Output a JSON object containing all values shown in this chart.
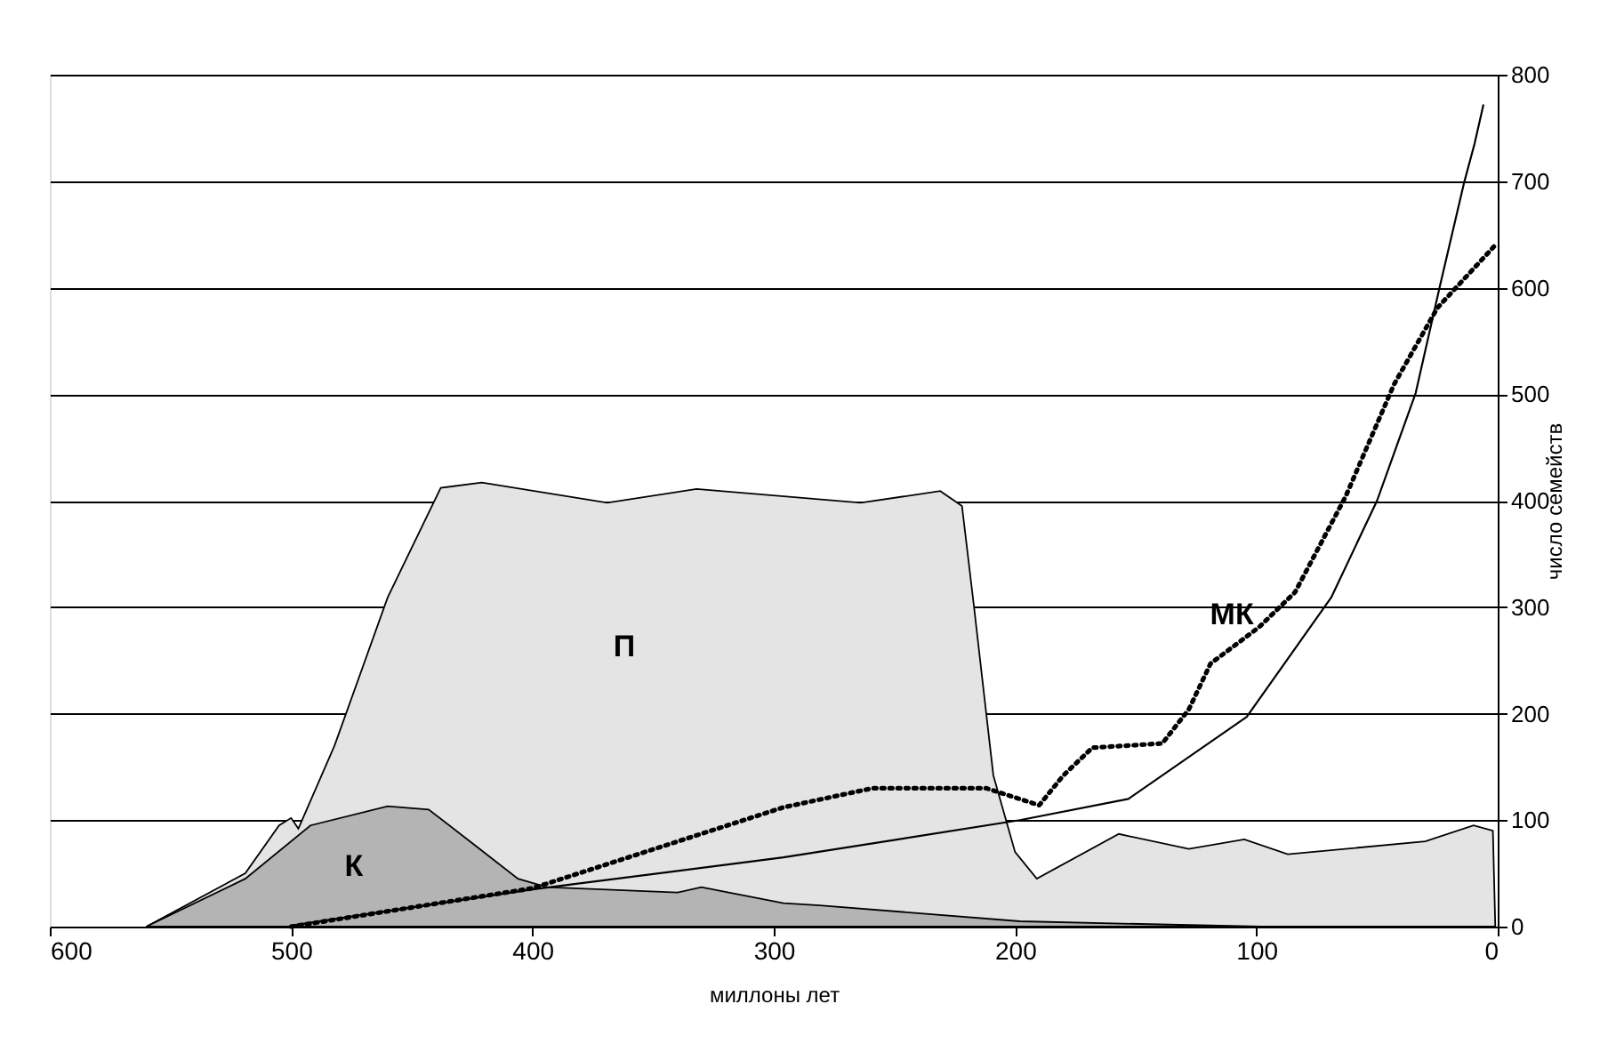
{
  "chart_data": {
    "type": "area",
    "xlabel": "миллоны лет",
    "ylabel": "число семейств",
    "xlim": [
      600,
      0
    ],
    "xticks": [
      600,
      500,
      400,
      300,
      200,
      100,
      0
    ],
    "ylim": [
      0,
      800
    ],
    "yticks": [
      0,
      100,
      200,
      300,
      400,
      500,
      600,
      700,
      800
    ],
    "grid": "y",
    "marker": "none",
    "series": [
      {
        "color": "#e4e4e4",
        "x": [
          560,
          519,
          505,
          500,
          497,
          482,
          460,
          438,
          421,
          369,
          332,
          264,
          231,
          222,
          217,
          209,
          200,
          191,
          157,
          128,
          105,
          87,
          30,
          10,
          2,
          1
        ],
        "values": [
          0,
          50,
          95,
          102,
          92,
          170,
          309,
          412,
          417,
          398,
          411,
          398,
          409,
          395,
          300,
          142,
          70,
          45,
          87,
          73,
          82,
          68,
          80,
          95,
          90,
          0
        ]
      },
      {
        "color": "#b4b4b4",
        "x": [
          560,
          519,
          492,
          460,
          443,
          423,
          406,
          394,
          340,
          330,
          296,
          281,
          198,
          98
        ],
        "values": [
          0,
          45,
          95,
          113,
          110,
          75,
          45,
          37,
          32,
          37,
          22,
          20,
          5,
          0
        ]
      },
      {
        "type": "line",
        "color": "#000000",
        "line_style": "solid",
        "x": [
          500,
          400,
          296,
          198,
          153,
          104,
          69,
          50,
          34,
          24,
          14,
          9.6,
          5.9
        ],
        "values": [
          1,
          35,
          65,
          100,
          120,
          197,
          309,
          400,
          501,
          601,
          698,
          735,
          772
        ]
      },
      {
        "type": "line",
        "color": "#000000",
        "line_style": "dotted",
        "x": [
          500,
          400,
          296,
          259,
          212,
          190,
          180,
          168,
          139,
          128,
          119,
          99,
          84,
          63,
          43,
          25,
          1
        ],
        "values": [
          0,
          36,
          112,
          130,
          130,
          114,
          142,
          168,
          172,
          204,
          247,
          281,
          314,
          404,
          509,
          581,
          640
        ]
      }
    ],
    "annotations": [
      "П",
      {
        "text": "К",
        "x": 460,
        "y": 113
      },
      {
        "text": "МК",
        "x": 119,
        "y": 247
      }
    ]
  }
}
